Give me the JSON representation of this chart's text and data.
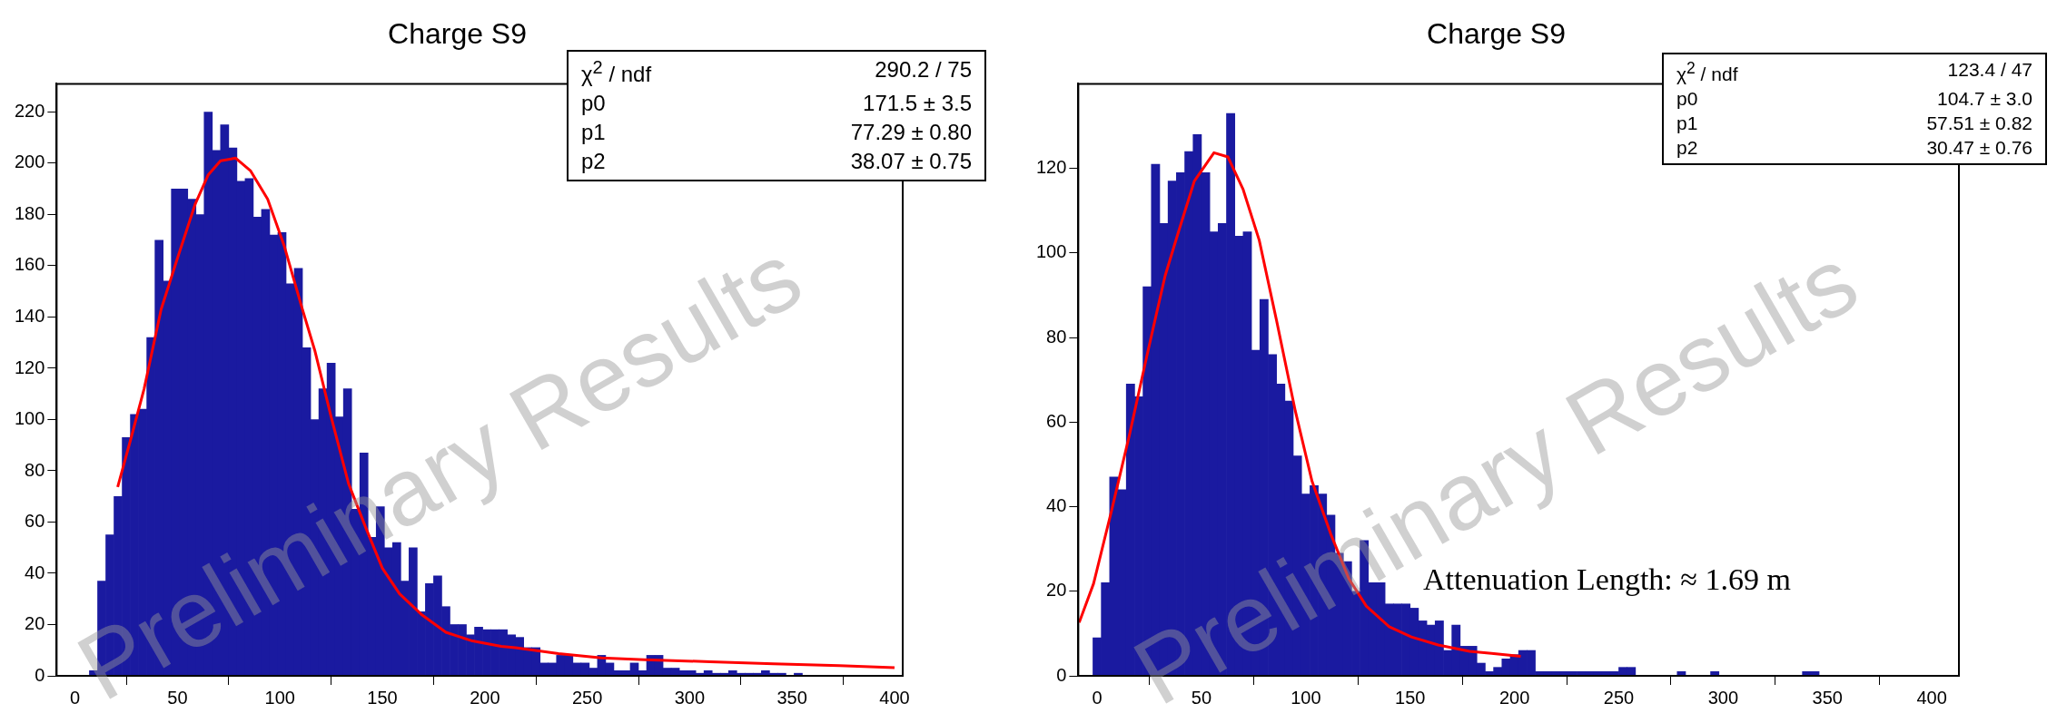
{
  "chart_data": [
    {
      "type": "histogram",
      "title": "Charge S9",
      "color": "#1a1aa0",
      "bins": [
        7,
        11,
        15,
        19,
        23,
        27,
        31,
        35,
        39,
        43,
        47,
        51,
        55,
        59,
        63,
        67,
        71,
        75,
        79,
        83,
        87,
        91,
        95,
        99,
        103,
        107,
        111,
        115,
        119,
        123,
        127,
        131,
        135,
        139,
        143,
        147,
        151,
        155,
        159,
        163,
        167,
        171,
        175,
        179,
        183,
        187,
        191,
        195,
        199,
        203,
        207,
        211,
        215,
        219,
        223,
        227,
        231,
        235,
        239,
        243,
        247,
        251,
        255,
        259,
        263,
        267,
        271,
        275,
        279,
        283,
        287,
        291,
        295,
        299,
        303,
        307,
        311,
        315,
        319,
        323,
        327,
        331,
        335,
        339,
        343,
        347,
        351,
        355,
        359,
        363,
        367,
        371,
        375,
        379,
        383,
        387,
        391,
        395,
        399,
        403
      ],
      "values": [
        2,
        37,
        55,
        70,
        93,
        102,
        104,
        132,
        170,
        154,
        190,
        190,
        186,
        180,
        220,
        205,
        215,
        206,
        193,
        194,
        179,
        182,
        172,
        173,
        153,
        159,
        128,
        100,
        112,
        122,
        101,
        112,
        65,
        87,
        54,
        66,
        50,
        52,
        37,
        50,
        25,
        36,
        39,
        27,
        20,
        20,
        16,
        19,
        18,
        18,
        18,
        16,
        15,
        11,
        11,
        5,
        5,
        8,
        8,
        5,
        5,
        3,
        8,
        5,
        2,
        2,
        5,
        2,
        8,
        8,
        3,
        3,
        2,
        2,
        1,
        2,
        1,
        1,
        2,
        1,
        1,
        1,
        2,
        1,
        1,
        0,
        1,
        0,
        0,
        0,
        0,
        0,
        0,
        0,
        0,
        0,
        0,
        0,
        0
      ],
      "series": [
        {
          "type": "line",
          "color": "#ff0000",
          "x": [
            20.8,
            27.4,
            33.7,
            42,
            50,
            58.6,
            65,
            71,
            78.4,
            85.7,
            94,
            102,
            110.6,
            117,
            125,
            133.5,
            141.8,
            150,
            158.4,
            169,
            181,
            194,
            208,
            215,
            236,
            257,
            278,
            310,
            341,
            373,
            400
          ],
          "values": [
            73.7,
            93,
            112,
            143,
            163,
            184,
            195.5,
            201,
            202,
            197,
            186,
            168,
            144,
            127,
            101,
            75,
            58,
            42,
            32,
            24,
            17,
            13.6,
            11.5,
            11,
            8.7,
            7,
            6.3,
            5.5,
            4.7,
            4,
            3.2
          ]
        }
      ],
      "xlim": [
        -9,
        404
      ],
      "xticks": [
        0,
        50,
        100,
        150,
        200,
        250,
        300,
        350,
        400
      ],
      "ylim": [
        0,
        231
      ],
      "yticks": [
        0,
        20,
        40,
        60,
        80,
        100,
        120,
        140,
        160,
        180,
        200,
        220
      ],
      "annotations": [
        "χ$^{2}$ / ndf",
        "290.2 / 75",
        "p0",
        "171.5 ± 3.5",
        "p1",
        "77.29 ± 0.80",
        "p2",
        "38.07 ± 0.75",
        "Preliminary Results"
      ]
    },
    {
      "type": "histogram",
      "title": "Charge S9",
      "color": "#1a1aa0",
      "bins": [
        -2,
        2,
        6,
        10,
        14,
        18,
        22,
        26,
        30,
        34,
        38,
        42,
        46,
        50,
        54,
        58,
        62,
        66,
        70,
        74,
        78,
        82,
        86,
        90,
        94,
        98,
        102,
        106,
        110,
        114,
        118,
        122,
        126,
        130,
        134,
        138,
        142,
        146,
        150,
        154,
        158,
        162,
        166,
        170,
        174,
        178,
        182,
        186,
        190,
        194,
        198,
        202,
        206,
        210,
        214,
        218,
        222,
        226,
        230,
        234,
        238,
        242,
        246,
        250,
        254,
        258,
        262,
        266,
        270,
        274,
        278,
        282,
        286,
        290,
        294,
        298,
        302,
        306,
        310,
        314,
        318,
        322,
        326,
        330,
        334,
        338,
        342,
        346,
        350,
        354,
        358,
        362,
        366,
        370,
        374,
        378,
        382,
        386,
        390,
        394,
        398,
        402,
        406,
        410
      ],
      "values": [
        9,
        22,
        47,
        44,
        69,
        66,
        92,
        121,
        107,
        117,
        119,
        124,
        128,
        119,
        105,
        107,
        133,
        104,
        105,
        77,
        89,
        76,
        69,
        65,
        52,
        43,
        45,
        43,
        38,
        29,
        27,
        20,
        32,
        22,
        22,
        17,
        17,
        17,
        16,
        13,
        12,
        13,
        6,
        12,
        7,
        7,
        3,
        1,
        2,
        4,
        5,
        6,
        6,
        1,
        1,
        1,
        1,
        1,
        1,
        1,
        1,
        1,
        1,
        2,
        2,
        0,
        0,
        0,
        0,
        0,
        1,
        0,
        0,
        0,
        1,
        0,
        0,
        0,
        0,
        0,
        0,
        0,
        0,
        0,
        0,
        1,
        1,
        0,
        0,
        0,
        0,
        0,
        0,
        0,
        0,
        0,
        0,
        0,
        0,
        0,
        0,
        0,
        0
      ],
      "series": [
        {
          "type": "line",
          "color": "#ff0000",
          "x": [
            -8.6,
            -1.7,
            6.9,
            15.5,
            24,
            32.6,
            39,
            46.6,
            56,
            62.7,
            70,
            77.7,
            86,
            95,
            103,
            112,
            120.6,
            129,
            140,
            150.6,
            163.5,
            178.5,
            189,
            203
          ],
          "values": [
            12.6,
            21.8,
            39,
            57,
            76,
            94.6,
            105,
            117,
            123.7,
            122.7,
            115,
            103,
            84,
            62.6,
            46,
            33.5,
            23,
            16.5,
            11.6,
            9.2,
            7.3,
            5.8,
            5.3,
            4.6
          ]
        }
      ],
      "xlim": [
        -9,
        413
      ],
      "xticks": [
        0,
        50,
        100,
        150,
        200,
        250,
        300,
        350,
        400
      ],
      "ylim": [
        0,
        140
      ],
      "yticks": [
        0,
        20,
        40,
        60,
        80,
        100,
        120
      ],
      "annotations": [
        "χ$^{2}$ / ndf",
        "123.4 / 47",
        "p0",
        "104.7 ± 3.0",
        "p1",
        "57.51 ± 0.82",
        "p2",
        "30.47 ± 0.76",
        "Preliminary Results",
        "Attenuation Length: ≈ 1.69 m"
      ]
    }
  ]
}
